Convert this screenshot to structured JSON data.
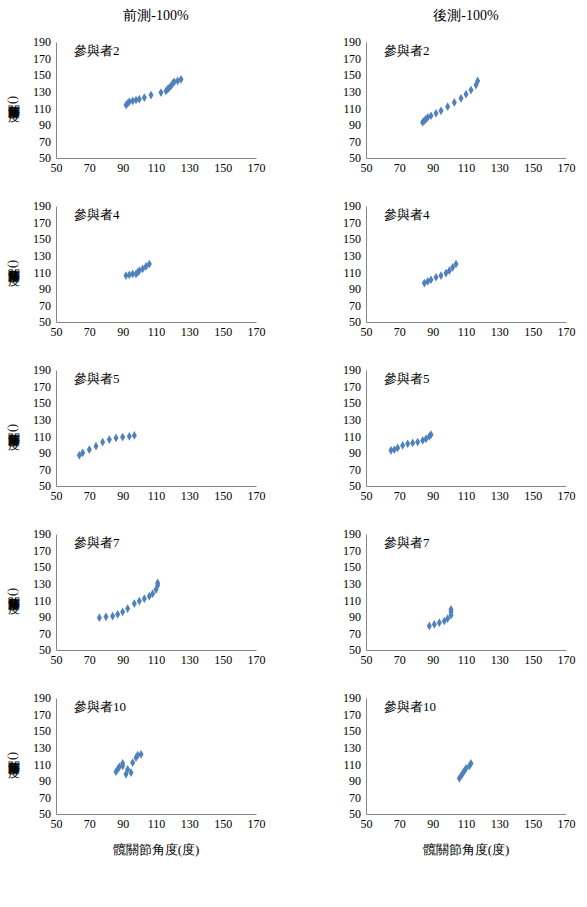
{
  "column_titles": [
    "前測-100%",
    "後測-100%"
  ],
  "chart_data": [
    {
      "type": "scatter",
      "title": "參與者2",
      "ylabel": "膝關節角度(度)",
      "xlim": [
        50,
        170
      ],
      "xticks": [
        50,
        70,
        90,
        110,
        130,
        150,
        170
      ],
      "ylim": [
        50,
        190
      ],
      "yticks": [
        50,
        70,
        90,
        110,
        130,
        150,
        170,
        190
      ],
      "x": [
        92,
        93,
        94,
        96,
        98,
        100,
        103,
        107,
        113,
        116,
        117,
        118,
        119,
        120,
        121,
        123,
        125
      ],
      "series": [
        {
          "color": "#4f81bd",
          "marker": "diamond",
          "values": [
            114,
            116,
            118,
            119,
            120,
            121,
            123,
            126,
            129,
            131,
            133,
            135,
            137,
            140,
            142,
            143,
            145
          ]
        }
      ]
    },
    {
      "type": "scatter",
      "title": "參與者2",
      "xlim": [
        50,
        170
      ],
      "xticks": [
        50,
        70,
        90,
        110,
        130,
        150,
        170
      ],
      "ylim": [
        50,
        190
      ],
      "yticks": [
        50,
        70,
        90,
        110,
        130,
        150,
        170,
        190
      ],
      "x": [
        84,
        85,
        86,
        87,
        89,
        92,
        95,
        99,
        103,
        107,
        110,
        113,
        116,
        117
      ],
      "series": [
        {
          "color": "#4f81bd",
          "marker": "diamond",
          "values": [
            93,
            95,
            97,
            99,
            101,
            104,
            107,
            112,
            117,
            122,
            127,
            132,
            138,
            143
          ]
        }
      ]
    },
    {
      "type": "scatter",
      "title": "參與者4",
      "ylabel": "膝關節角度(度)",
      "xlim": [
        50,
        170
      ],
      "xticks": [
        50,
        70,
        90,
        110,
        130,
        150,
        170
      ],
      "ylim": [
        50,
        190
      ],
      "yticks": [
        50,
        70,
        90,
        110,
        130,
        150,
        170,
        190
      ],
      "x": [
        92,
        94,
        96,
        98,
        99,
        100,
        102,
        104,
        106
      ],
      "series": [
        {
          "color": "#4f81bd",
          "marker": "diamond",
          "values": [
            106,
            107,
            108,
            108,
            110,
            112,
            114,
            117,
            120
          ]
        }
      ]
    },
    {
      "type": "scatter",
      "title": "參與者4",
      "xlim": [
        50,
        170
      ],
      "xticks": [
        50,
        70,
        90,
        110,
        130,
        150,
        170
      ],
      "ylim": [
        50,
        190
      ],
      "yticks": [
        50,
        70,
        90,
        110,
        130,
        150,
        170,
        190
      ],
      "x": [
        85,
        87,
        89,
        92,
        95,
        98,
        100,
        102,
        104
      ],
      "series": [
        {
          "color": "#4f81bd",
          "marker": "diamond",
          "values": [
            97,
            99,
            101,
            104,
            106,
            109,
            112,
            116,
            120
          ]
        }
      ]
    },
    {
      "type": "scatter",
      "title": "參與者5",
      "ylabel": "膝關節角度(度)",
      "xlim": [
        50,
        170
      ],
      "xticks": [
        50,
        70,
        90,
        110,
        130,
        150,
        170
      ],
      "ylim": [
        50,
        190
      ],
      "yticks": [
        50,
        70,
        90,
        110,
        130,
        150,
        170,
        190
      ],
      "x": [
        64,
        66,
        70,
        74,
        78,
        82,
        86,
        90,
        94,
        97
      ],
      "series": [
        {
          "color": "#4f81bd",
          "marker": "diamond",
          "values": [
            87,
            90,
            94,
            98,
            103,
            106,
            108,
            109,
            110,
            111
          ]
        }
      ]
    },
    {
      "type": "scatter",
      "title": "參與者5",
      "xlim": [
        50,
        170
      ],
      "xticks": [
        50,
        70,
        90,
        110,
        130,
        150,
        170
      ],
      "ylim": [
        50,
        190
      ],
      "yticks": [
        50,
        70,
        90,
        110,
        130,
        150,
        170,
        190
      ],
      "x": [
        65,
        67,
        69,
        72,
        75,
        78,
        81,
        84,
        86,
        88,
        89
      ],
      "series": [
        {
          "color": "#4f81bd",
          "marker": "diamond",
          "values": [
            93,
            94,
            96,
            99,
            101,
            102,
            103,
            105,
            107,
            110,
            112
          ]
        }
      ]
    },
    {
      "type": "scatter",
      "title": "參與者7",
      "ylabel": "膝關節角度(度)",
      "xlim": [
        50,
        170
      ],
      "xticks": [
        50,
        70,
        90,
        110,
        130,
        150,
        170
      ],
      "ylim": [
        50,
        190
      ],
      "yticks": [
        50,
        70,
        90,
        110,
        130,
        150,
        170,
        190
      ],
      "x": [
        76,
        80,
        84,
        87,
        90,
        93,
        97,
        100,
        103,
        106,
        108,
        110,
        111,
        111
      ],
      "series": [
        {
          "color": "#4f81bd",
          "marker": "diamond",
          "values": [
            89,
            90,
            91,
            93,
            96,
            100,
            106,
            109,
            112,
            115,
            118,
            123,
            128,
            131
          ]
        }
      ]
    },
    {
      "type": "scatter",
      "title": "參與者7",
      "xlim": [
        50,
        170
      ],
      "xticks": [
        50,
        70,
        90,
        110,
        130,
        150,
        170
      ],
      "ylim": [
        50,
        190
      ],
      "yticks": [
        50,
        70,
        90,
        110,
        130,
        150,
        170,
        190
      ],
      "x": [
        88,
        91,
        94,
        97,
        99,
        101,
        101,
        101
      ],
      "series": [
        {
          "color": "#4f81bd",
          "marker": "diamond",
          "values": [
            79,
            81,
            83,
            85,
            88,
            92,
            96,
            99
          ]
        }
      ]
    },
    {
      "type": "scatter",
      "title": "參與者10",
      "ylabel": "膝關節角度(度)",
      "xlabel": "髖關節角度(度)",
      "xlim": [
        50,
        170
      ],
      "xticks": [
        50,
        70,
        90,
        110,
        130,
        150,
        170
      ],
      "ylim": [
        50,
        190
      ],
      "yticks": [
        50,
        70,
        90,
        110,
        130,
        150,
        170,
        190
      ],
      "x": [
        86,
        87,
        88,
        90,
        93,
        95,
        92,
        96,
        98,
        99,
        101,
        90
      ],
      "series": [
        {
          "color": "#4f81bd",
          "marker": "diamond",
          "values": [
            101,
            104,
            107,
            108,
            104,
            100,
            98,
            112,
            118,
            121,
            122,
            111
          ]
        }
      ]
    },
    {
      "type": "scatter",
      "title": "參與者10",
      "xlabel": "髖關節角度(度)",
      "xlim": [
        50,
        170
      ],
      "xticks": [
        50,
        70,
        90,
        110,
        130,
        150,
        170
      ],
      "ylim": [
        50,
        190
      ],
      "yticks": [
        50,
        70,
        90,
        110,
        130,
        150,
        170,
        190
      ],
      "x": [
        106,
        107,
        108,
        109,
        110,
        112,
        113
      ],
      "series": [
        {
          "color": "#4f81bd",
          "marker": "diamond",
          "values": [
            93,
            96,
            99,
            102,
            105,
            108,
            111
          ]
        }
      ]
    }
  ]
}
